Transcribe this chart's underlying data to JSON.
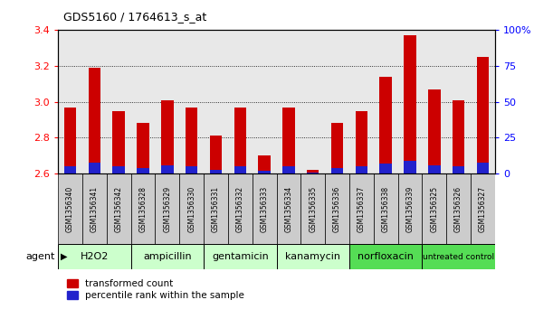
{
  "title": "GDS5160 / 1764613_s_at",
  "samples": [
    "GSM1356340",
    "GSM1356341",
    "GSM1356342",
    "GSM1356328",
    "GSM1356329",
    "GSM1356330",
    "GSM1356331",
    "GSM1356332",
    "GSM1356333",
    "GSM1356334",
    "GSM1356335",
    "GSM1356336",
    "GSM1356337",
    "GSM1356338",
    "GSM1356339",
    "GSM1356325",
    "GSM1356326",
    "GSM1356327"
  ],
  "transformed_count": [
    2.97,
    3.19,
    2.95,
    2.88,
    3.01,
    2.97,
    2.81,
    2.97,
    2.7,
    2.97,
    2.62,
    2.88,
    2.95,
    3.14,
    3.37,
    3.07,
    3.01,
    3.25
  ],
  "percentile_rank": [
    5,
    8,
    5,
    4,
    6,
    5,
    3,
    5,
    2,
    5,
    1,
    4,
    5,
    7,
    9,
    6,
    5,
    8
  ],
  "agents": [
    {
      "label": "H2O2",
      "start": 0,
      "end": 3,
      "color": "#ccffcc"
    },
    {
      "label": "ampicillin",
      "start": 3,
      "end": 6,
      "color": "#ccffcc"
    },
    {
      "label": "gentamicin",
      "start": 6,
      "end": 9,
      "color": "#ccffcc"
    },
    {
      "label": "kanamycin",
      "start": 9,
      "end": 12,
      "color": "#ccffcc"
    },
    {
      "label": "norfloxacin",
      "start": 12,
      "end": 15,
      "color": "#55dd55"
    },
    {
      "label": "untreated control",
      "start": 15,
      "end": 18,
      "color": "#55dd55"
    }
  ],
  "ylim_left": [
    2.6,
    3.4
  ],
  "ylim_right": [
    0,
    100
  ],
  "yticks_left": [
    2.6,
    2.8,
    3.0,
    3.2,
    3.4
  ],
  "yticks_right": [
    0,
    25,
    50,
    75,
    100
  ],
  "bar_color_red": "#cc0000",
  "bar_color_blue": "#2222cc",
  "bar_width": 0.5,
  "bg_color": "#e8e8e8",
  "legend_red": "transformed count",
  "legend_blue": "percentile rank within the sample"
}
